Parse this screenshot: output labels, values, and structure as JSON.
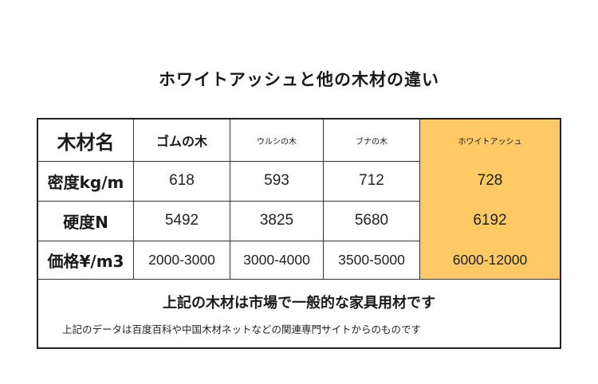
{
  "title": "ホワイトアッシュと他の木材の違い",
  "table": {
    "corner": "木材名",
    "columns": [
      "ゴムの木",
      "ウルシの木",
      "ブナの木",
      "ホワイトアッシュ"
    ],
    "rows": [
      {
        "label": "密度kg/m",
        "values": [
          "618",
          "593",
          "712",
          "728"
        ]
      },
      {
        "label": "硬度N",
        "values": [
          "5492",
          "3825",
          "5680",
          "6192"
        ]
      },
      {
        "label": "価格¥/m3",
        "values": [
          "2000-3000",
          "3000-4000",
          "3500-5000",
          "6000-12000"
        ]
      }
    ],
    "highlight_color": "#ffc966"
  },
  "notes": {
    "main": "上記の木材は市場で一般的な家具用材です",
    "sub": "上記のデータは百度百科や中国木材ネットなどの関連専門サイトからのものです"
  }
}
